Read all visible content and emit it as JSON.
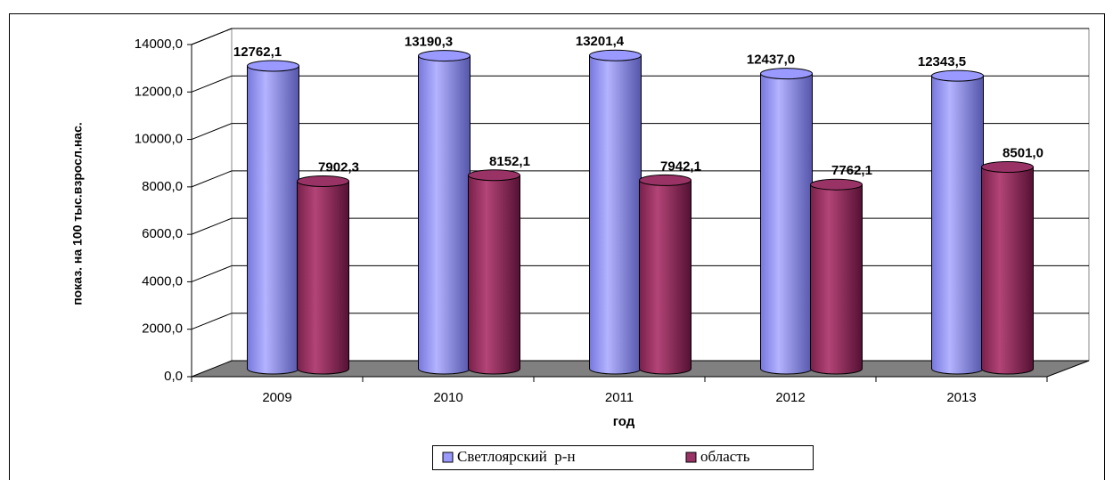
{
  "chart_data": {
    "type": "bar3d",
    "y_axis_title": "показ. на 100 тыс.взросл.нас.",
    "x_axis_title": "год",
    "categories": [
      "2009",
      "2010",
      "2011",
      "2012",
      "2013"
    ],
    "series": [
      {
        "name": "Светлоярский  р-н",
        "color": "#9999ff",
        "values": [
          12762.1,
          13190.3,
          13201.4,
          12437.0,
          12343.5
        ],
        "value_labels": [
          "12762,1",
          "13190,3",
          "13201,4",
          "12437,0",
          "12343,5"
        ]
      },
      {
        "name": "область",
        "color": "#993366",
        "values": [
          7902.3,
          8152.1,
          7942.1,
          7762.1,
          8501.0
        ],
        "value_labels": [
          "7902,3",
          "8152,1",
          "7942,1",
          "7762,1",
          "8501,0"
        ]
      }
    ],
    "ylim": [
      0,
      14000
    ],
    "yticks": [
      {
        "value": 0,
        "label": "0,0"
      },
      {
        "value": 2000,
        "label": "2000,0"
      },
      {
        "value": 4000,
        "label": "4000,0"
      },
      {
        "value": 6000,
        "label": "6000,0"
      },
      {
        "value": 8000,
        "label": "8000,0"
      },
      {
        "value": 10000,
        "label": "10000,0"
      },
      {
        "value": 12000,
        "label": "12000,0"
      },
      {
        "value": 14000,
        "label": "14000,0"
      }
    ],
    "grid": true,
    "legend": "bottom"
  }
}
